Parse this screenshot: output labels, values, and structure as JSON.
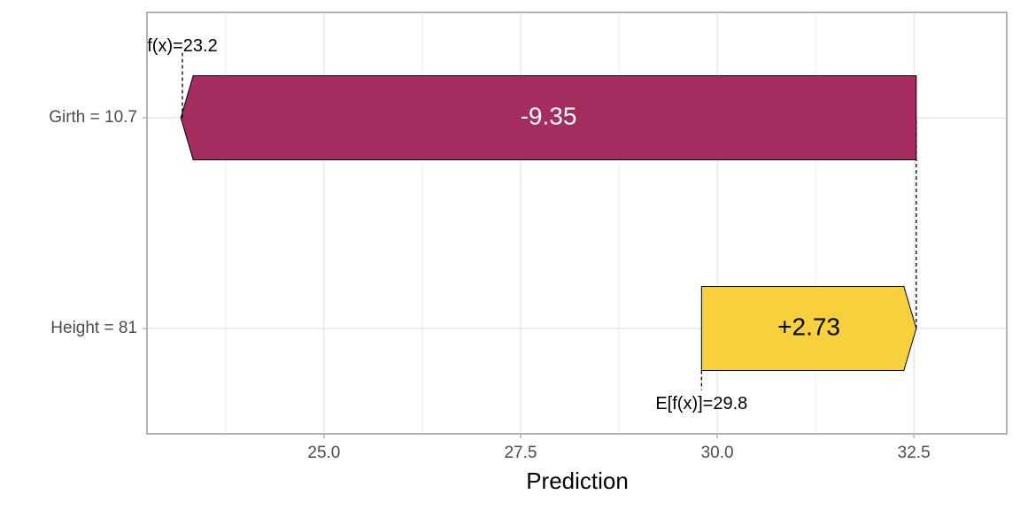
{
  "chart_data": {
    "type": "waterfall",
    "x_label": "Prediction",
    "categories": [
      "Girth = 10.7",
      "Height = 81"
    ],
    "values": [
      -9.35,
      2.73
    ],
    "value_labels": [
      "-9.35",
      "+2.73"
    ],
    "expected_value": {
      "value": 29.8,
      "label": "E[f(x)]=29.8"
    },
    "prediction": {
      "value": 23.2,
      "label": "f(x)=23.2"
    },
    "positive_color": "#f7d13d",
    "negative_color": "#a52c60",
    "xlim": [
      22.75,
      33.68
    ],
    "xticks": [
      {
        "value": 25,
        "label": "25.0"
      },
      27.5,
      {
        "value": 30,
        "label": "30.0"
      },
      32.5
    ],
    "grid": true
  }
}
